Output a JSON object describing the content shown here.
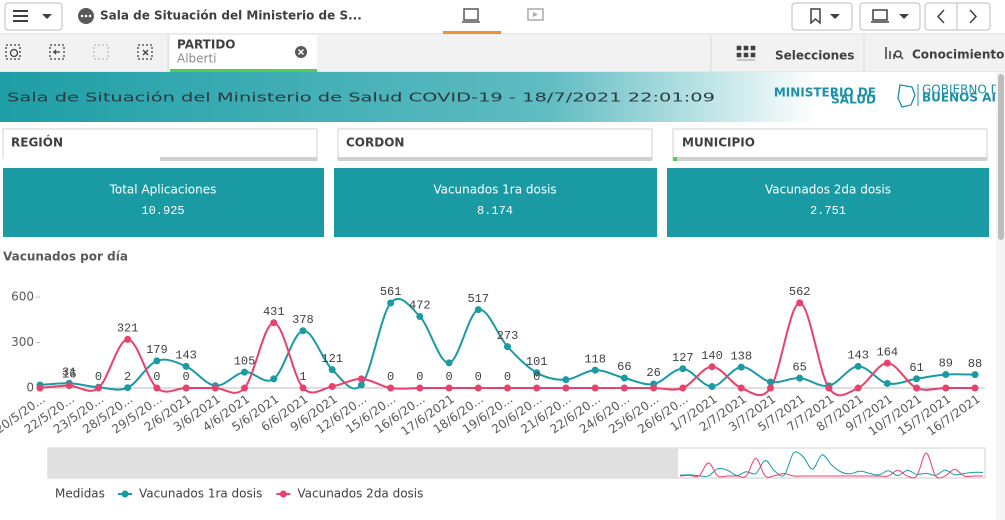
{
  "toolbar": {
    "app_title": "Sala de Situación del Ministerio de S...",
    "selection": {
      "field": "PARTIDO",
      "value": "Alberti"
    },
    "selections": "Selecciones",
    "insights": "Conocimientos"
  },
  "banner": {
    "title": "Sala de Situación del Ministerio de Salud COVID-19 - 18/7/2021 22:01:09",
    "logo_left": [
      "MINISTERIO DE",
      "SALUD"
    ],
    "logo_right": [
      "GOBIERNO DE LA PROVINCIA DE",
      "BUENOS AIRES"
    ]
  },
  "filters": [
    "REGIÓN",
    "CORDON",
    "MUNICIPIO"
  ],
  "kpis": [
    {
      "label": "Total Aplicaciones",
      "value": "10.925"
    },
    {
      "label": "Vacunados 1ra dosis",
      "value": "8.174"
    },
    {
      "label": "Vacunados 2da dosis",
      "value": "2.751"
    }
  ],
  "chart_data": {
    "type": "line",
    "title": "Vacunados por día",
    "legend_title": "Medidas",
    "categories": [
      "20/5/20...",
      "22/5/20...",
      "23/5/20...",
      "28/5/20...",
      "29/5/20...",
      "2/6/2021",
      "3/6/2021",
      "4/6/2021",
      "5/6/2021",
      "6/6/2021",
      "9/6/2021",
      "12/6/20...",
      "15/6/20...",
      "16/6/20...",
      "17/6/2021",
      "18/6/20...",
      "19/6/20...",
      "20/6/20...",
      "21/6/20...",
      "22/6/20...",
      "24/6/20...",
      "25/6/20...",
      "26/6/20...",
      "1/7/2021",
      "2/7/2021",
      "3/7/2021",
      "5/7/2021",
      "7/7/2021",
      "8/7/2021",
      "9/7/2021",
      "10/7/2021",
      "15/7/2021",
      "16/7/2021"
    ],
    "series": [
      {
        "name": "Vacunados 1ra dosis",
        "color": "#1a9ba4",
        "values": [
          20,
          31,
          5,
          2,
          179,
          143,
          15,
          105,
          60,
          378,
          121,
          20,
          561,
          472,
          166,
          517,
          273,
          101,
          55,
          118,
          66,
          26,
          127,
          10,
          138,
          40,
          65,
          15,
          143,
          30,
          61,
          89,
          88
        ],
        "value_labels": [
          null,
          "31",
          null,
          "2",
          "179",
          "143",
          null,
          "105",
          null,
          "378",
          "121",
          null,
          "561",
          "472",
          null,
          "517",
          "273",
          "101",
          null,
          "118",
          "66",
          "26",
          "127",
          null,
          "138",
          null,
          "65",
          null,
          "143",
          null,
          "61",
          "89",
          "88"
        ]
      },
      {
        "name": "Vacunados 2da dosis",
        "color": "#e8416b",
        "values": [
          0,
          16,
          0,
          321,
          0,
          0,
          0,
          0,
          431,
          1,
          10,
          60,
          0,
          0,
          0,
          0,
          0,
          0,
          0,
          0,
          0,
          0,
          0,
          140,
          0,
          0,
          562,
          0,
          0,
          164,
          0,
          0,
          0
        ],
        "value_labels": [
          null,
          "16",
          "0",
          "321",
          "0",
          "0",
          null,
          null,
          "431",
          "1",
          null,
          null,
          "0",
          "0",
          "0",
          "0",
          "0",
          "0",
          null,
          null,
          null,
          null,
          null,
          "140",
          null,
          null,
          "562",
          null,
          null,
          "164",
          null,
          null,
          null
        ]
      }
    ],
    "ylim": [
      0,
      660
    ],
    "yticks": [
      0,
      300,
      600
    ],
    "grid": false,
    "legend": "bottom-left"
  }
}
